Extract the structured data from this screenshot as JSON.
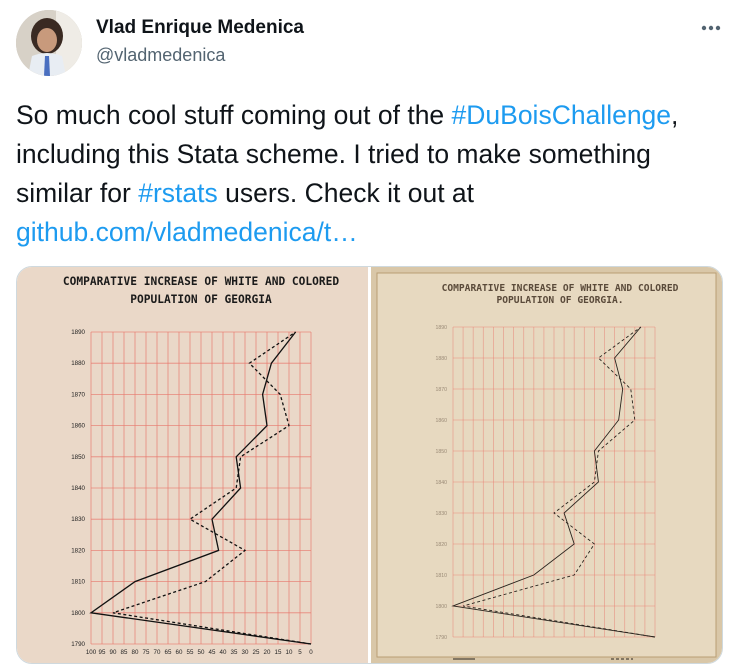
{
  "author": {
    "name": "Vlad Enrique Medenica",
    "handle": "@vladmedenica"
  },
  "icons": {
    "avatar": "profile-photo",
    "more": "more-horizontal-icon"
  },
  "tweet": {
    "text_1": "So much cool stuff coming out of the ",
    "hashtag_1": "#DuBoisChallenge",
    "text_2": ", including this Stata scheme. I tried to make something similar for ",
    "hashtag_2": "#rstats",
    "text_3": " users. Check it out at ",
    "link": "github.com/vladmedenica/t…"
  },
  "colors": {
    "link": "#1d9bf0",
    "grid": "#e87a6e",
    "paper_left": "#ead8c8",
    "paper_right": "#d9c7a8"
  },
  "chart_data": [
    {
      "type": "line",
      "title": "COMPARATIVE INCREASE OF WHITE AND COLORED\nPOPULATION OF GEORGIA",
      "title_line_1": "COMPARATIVE INCREASE OF WHITE AND COLORED",
      "title_line_2": "POPULATION OF GEORGIA",
      "x_ticks": [
        "100",
        "95",
        "90",
        "85",
        "80",
        "75",
        "70",
        "65",
        "60",
        "55",
        "50",
        "45",
        "40",
        "35",
        "30",
        "25",
        "20",
        "15",
        "10",
        "5",
        "0"
      ],
      "y_ticks": [
        "1890",
        "1880",
        "1870",
        "1860",
        "1850",
        "1840",
        "1830",
        "1820",
        "1810",
        "1800",
        "1790"
      ],
      "xlim": [
        0,
        100
      ],
      "x_reversed": true,
      "ylim": [
        1790,
        1890
      ],
      "series": [
        {
          "style": "solid",
          "x": [
            0,
            100,
            80,
            42,
            45,
            32,
            34,
            20,
            22,
            18,
            7
          ],
          "y": [
            1790,
            1800,
            1810,
            1820,
            1830,
            1840,
            1850,
            1860,
            1870,
            1880,
            1890
          ]
        },
        {
          "style": "dashed",
          "x": [
            0,
            90,
            48,
            30,
            55,
            34,
            32,
            10,
            14,
            28,
            7
          ],
          "y": [
            1790,
            1800,
            1810,
            1820,
            1830,
            1840,
            1850,
            1860,
            1870,
            1880,
            1890
          ]
        }
      ]
    },
    {
      "type": "line",
      "title": "COMPARATIVE INCREASE OF WHITE AND COLORED\nPOPULATION OF GEORGIA.",
      "title_line_1": "COMPARATIVE INCREASE OF WHITE AND COLORED",
      "title_line_2": "POPULATION OF GEORGIA.",
      "y_ticks": [
        "1890",
        "1880",
        "1870",
        "1860",
        "1850",
        "1840",
        "1830",
        "1820",
        "1810",
        "1800",
        "1790"
      ],
      "xlim": [
        0,
        100
      ],
      "x_reversed": true,
      "ylim": [
        1790,
        1890
      ],
      "series": [
        {
          "style": "solid",
          "x": [
            0,
            100,
            60,
            40,
            45,
            28,
            30,
            18,
            16,
            20,
            7
          ],
          "y": [
            1790,
            1800,
            1810,
            1820,
            1830,
            1840,
            1850,
            1860,
            1870,
            1880,
            1890
          ]
        },
        {
          "style": "dashed",
          "x": [
            0,
            95,
            40,
            30,
            50,
            30,
            28,
            10,
            12,
            28,
            7
          ],
          "y": [
            1790,
            1800,
            1810,
            1820,
            1830,
            1840,
            1850,
            1860,
            1870,
            1880,
            1890
          ]
        }
      ]
    }
  ]
}
